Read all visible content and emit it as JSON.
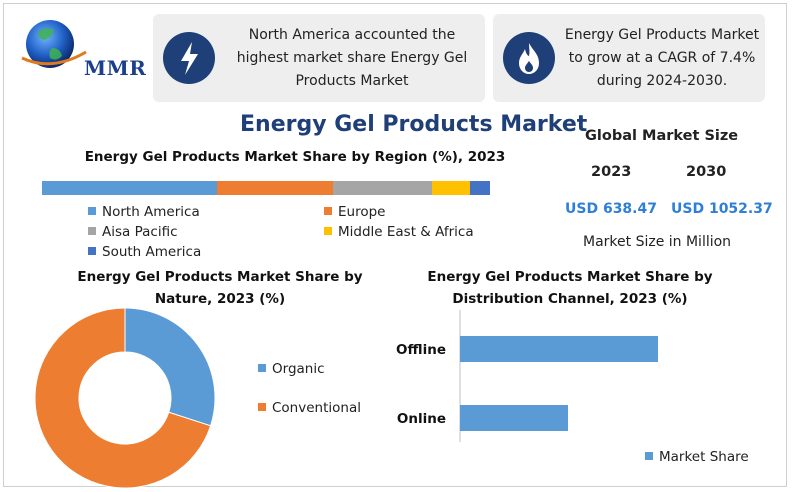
{
  "brand": {
    "logo_text": "MMR"
  },
  "cards": [
    {
      "icon": "lightning-icon",
      "text_lines": [
        "North America accounted the",
        "highest market share Energy Gel",
        "Products Market"
      ]
    },
    {
      "icon": "flame-icon",
      "text_lines": [
        "Energy Gel Products Market",
        "to grow at a CAGR of 7.4%",
        "during 2024-2030."
      ]
    }
  ],
  "main_title": "Energy Gel Products Market",
  "global_market": {
    "title": "Global Market Size",
    "years": [
      "2023",
      "2030"
    ],
    "values": [
      "USD 638.47",
      "USD 1052.37"
    ],
    "unit_label": "Market Size in Million"
  },
  "chart_data": [
    {
      "type": "bar",
      "orientation": "horizontal-stacked",
      "title": "Energy Gel Products Market Share by Region (%), 2023",
      "series": [
        {
          "name": "North America",
          "value": 39,
          "color": "#5b9bd5"
        },
        {
          "name": "Europe",
          "value": 26,
          "color": "#ed7d31"
        },
        {
          "name": "Aisa Pacific",
          "value": 22,
          "color": "#a5a5a5"
        },
        {
          "name": "Middle East & Africa",
          "value": 8.5,
          "color": "#ffc000"
        },
        {
          "name": "South America",
          "value": 4.5,
          "color": "#4472c4"
        }
      ]
    },
    {
      "type": "pie",
      "variant": "donut",
      "title_lines": [
        "Energy Gel Products Market Share by",
        "Nature, 2023 (%)"
      ],
      "categories": [
        "Organic",
        "Conventional"
      ],
      "values": [
        30,
        70
      ],
      "colors": [
        "#5b9bd5",
        "#ed7d31"
      ],
      "legend": "right"
    },
    {
      "type": "bar",
      "orientation": "horizontal",
      "title_lines": [
        "Energy Gel Products Market Share by",
        "Distribution Channel, 2023 (%)"
      ],
      "categories": [
        "Offline",
        "Online"
      ],
      "series": [
        {
          "name": "Market Share",
          "values": [
            66,
            36
          ],
          "color": "#5b9bd5"
        }
      ],
      "xlim": [
        0,
        100
      ],
      "legend": "bottom-right"
    }
  ]
}
